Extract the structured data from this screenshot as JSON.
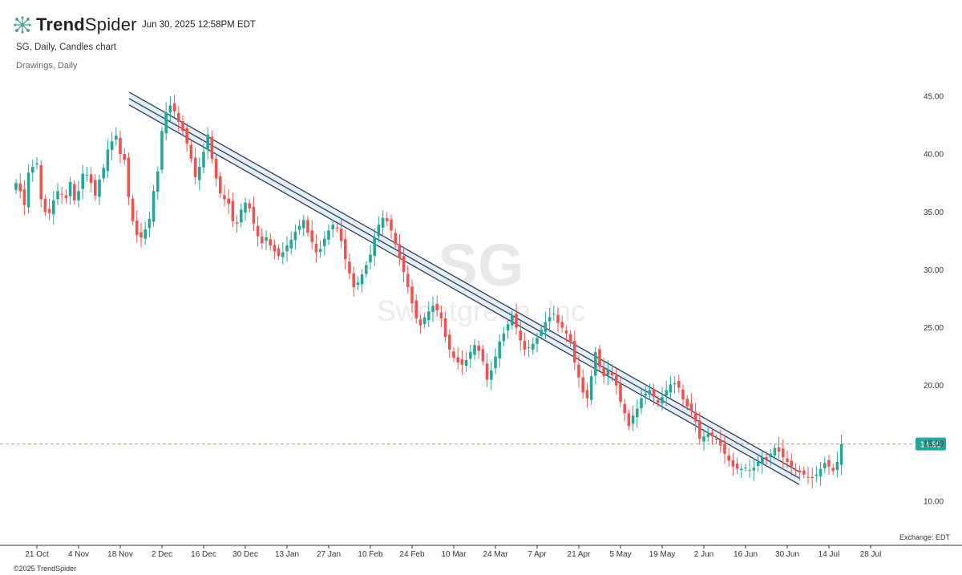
{
  "brand": {
    "name_bold": "Trend",
    "name_regular": "Spider",
    "logo_icon": "trendspider-logo-icon"
  },
  "timestamp": "Jun 30, 2025 12:58PM EDT",
  "subtitle": "SG, Daily, Candles chart",
  "drawings_label": "Drawings, Daily",
  "footer": "©2025 TrendSpider",
  "exchange_label": "Exchange: EDT",
  "watermark": {
    "ticker": "SG",
    "company": "Sweetgreen, Inc"
  },
  "colors": {
    "up": "#26a69a",
    "down": "#ef5350",
    "channel": "#2a3c5c",
    "channel_fill": "#e3eef7",
    "price_line": "#ff8a3d",
    "price_badge": "#26a69a"
  },
  "chart_data": {
    "type": "candlestick",
    "symbol": "SG",
    "interval": "Daily",
    "grid": false,
    "x_start_date": "2024-10-14",
    "x_end_date": "2025-07-28",
    "xlim_index": [
      0,
      197
    ],
    "ylim": [
      6,
      48
    ],
    "y_ticks": [
      10,
      15,
      20,
      25,
      30,
      35,
      40,
      45
    ],
    "y_tick_labels": [
      "10.00",
      "15.00",
      "20.00",
      "25.00",
      "30.00",
      "35.00",
      "40.00",
      "45.00"
    ],
    "x_tick_labels": [
      "21 Oct",
      "4 Nov",
      "18 Nov",
      "2 Dec",
      "16 Dec",
      "30 Dec",
      "13 Jan",
      "27 Jan",
      "10 Feb",
      "24 Feb",
      "10 Mar",
      "24 Mar",
      "7 Apr",
      "21 Apr",
      "5 May",
      "19 May",
      "2 Jun",
      "16 Jun",
      "30 Jun",
      "14 Jul",
      "28 Jul"
    ],
    "current_price": 14.95,
    "current_price_label": "14.95",
    "channel": {
      "start_date": "2024-11-21",
      "start_value": 44.8,
      "end_date": "2025-07-04",
      "end_value": 12.0,
      "band_offset": 0.55
    },
    "closes": [
      37.5,
      36.8,
      35.6,
      38.4,
      38.9,
      39.2,
      36.1,
      35.0,
      34.9,
      36.0,
      36.8,
      36.5,
      36.2,
      37.6,
      36.0,
      36.8,
      38.3,
      38.2,
      37.5,
      36.4,
      37.8,
      38.8,
      40.4,
      41.1,
      41.6,
      40.0,
      39.5,
      36.3,
      34.2,
      33.0,
      32.8,
      33.5,
      34.4,
      36.8,
      38.5,
      42.0,
      43.6,
      44.2,
      43.7,
      42.8,
      42.0,
      40.9,
      39.6,
      38.0,
      38.9,
      40.2,
      41.7,
      39.6,
      37.9,
      36.6,
      36.1,
      35.7,
      34.2,
      34.0,
      35.2,
      35.8,
      35.3,
      34.0,
      32.9,
      32.3,
      32.8,
      32.1,
      31.6,
      31.2,
      31.5,
      32.1,
      32.6,
      33.3,
      33.8,
      34.3,
      33.2,
      32.4,
      31.5,
      31.8,
      32.7,
      33.4,
      33.9,
      33.6,
      32.5,
      30.9,
      29.7,
      28.5,
      28.9,
      29.6,
      30.4,
      31.3,
      32.8,
      33.9,
      34.5,
      34.2,
      33.4,
      32.2,
      31.0,
      29.8,
      28.5,
      27.1,
      25.8,
      25.2,
      25.9,
      26.4,
      26.9,
      26.5,
      25.8,
      24.2,
      23.1,
      22.4,
      22.0,
      21.8,
      22.2,
      22.9,
      23.5,
      23.0,
      22.1,
      20.5,
      21.3,
      22.5,
      23.8,
      24.5,
      25.3,
      26.1,
      25.0,
      23.9,
      23.1,
      23.3,
      23.6,
      24.1,
      24.8,
      25.5,
      25.9,
      26.2,
      25.4,
      25.0,
      24.5,
      23.7,
      22.0,
      20.7,
      19.4,
      18.9,
      20.8,
      22.9,
      21.6,
      20.8,
      21.4,
      20.9,
      20.0,
      18.6,
      17.6,
      16.5,
      17.4,
      18.0,
      18.9,
      19.3,
      19.6,
      19.0,
      18.5,
      19.0,
      19.6,
      20.1,
      20.2,
      19.8,
      18.8,
      18.2,
      17.8,
      16.9,
      15.4,
      15.6,
      15.8,
      15.6,
      15.3,
      14.8,
      14.1,
      13.5,
      13.0,
      12.8,
      12.8,
      12.9,
      12.7,
      12.9,
      13.4,
      13.8,
      13.6,
      14.1,
      14.6,
      14.3,
      13.8,
      13.4,
      13.0,
      12.7,
      12.5,
      12.3,
      12.1,
      12.0,
      12.3,
      12.8,
      13.3,
      13.0,
      12.6,
      13.4,
      14.95
    ]
  }
}
